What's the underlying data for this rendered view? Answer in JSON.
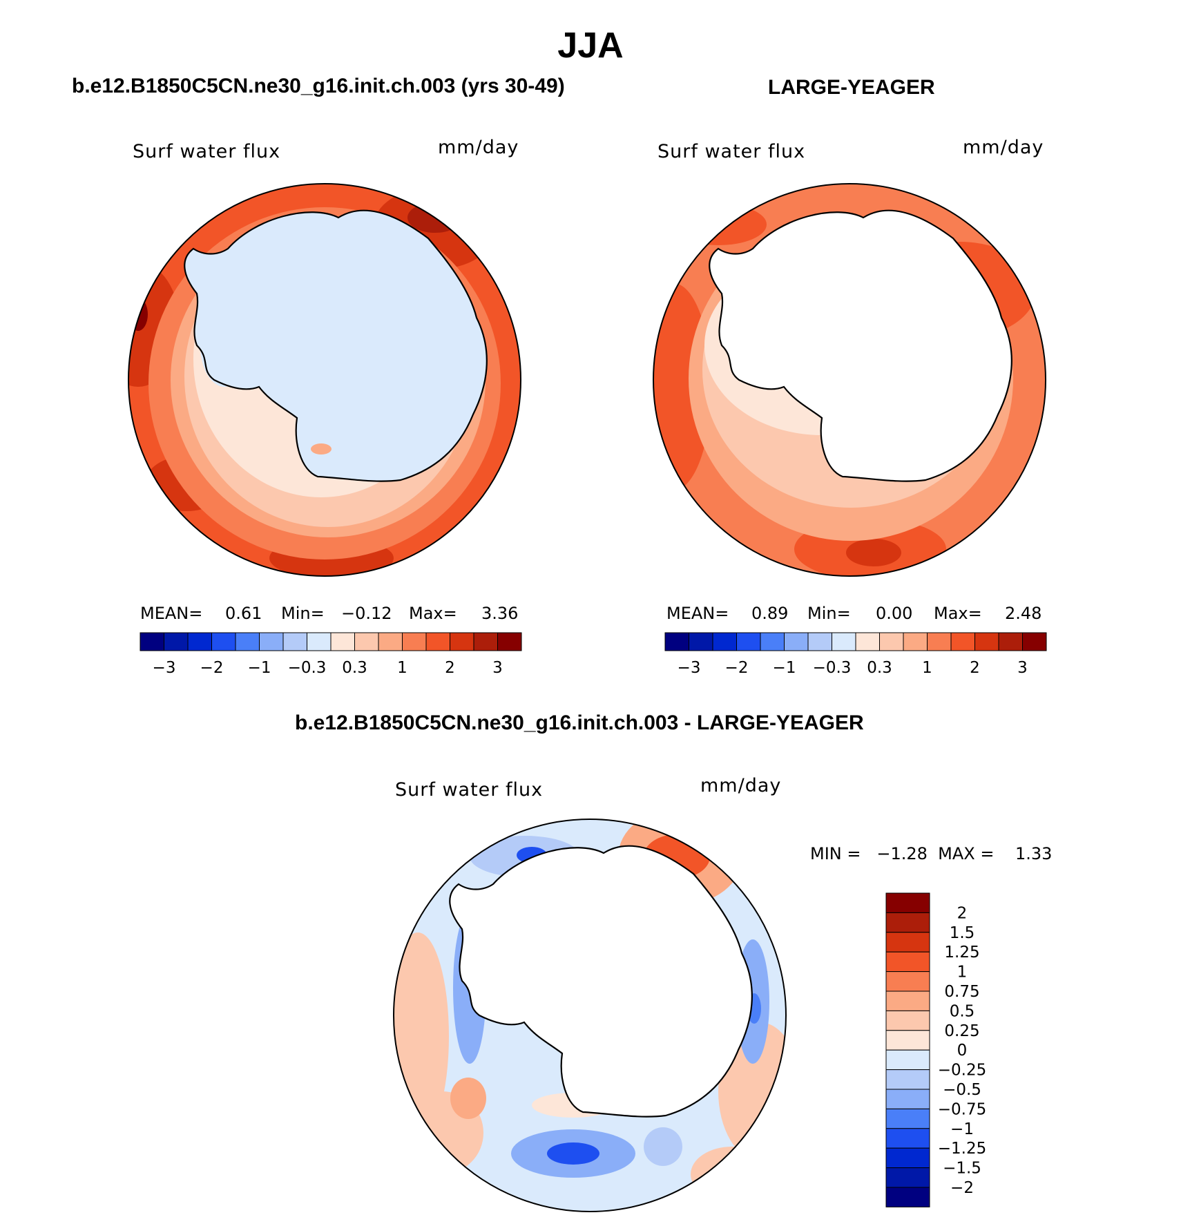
{
  "title": "JJA",
  "panels": [
    {
      "title": "b.e12.B1850C5CN.ne30_g16.init.ch.003 (yrs 30-49)",
      "variable": "Surf water flux",
      "units": "mm/day",
      "stats": {
        "mean_label": "MEAN=",
        "mean": "0.61",
        "min_label": "Min=",
        "min": "−0.12",
        "max_label": "Max=",
        "max": "3.36"
      }
    },
    {
      "title": "LARGE-YEAGER",
      "variable": "Surf water flux",
      "units": "mm/day",
      "stats": {
        "mean_label": "MEAN=",
        "mean": "0.89",
        "min_label": "Min=",
        "min": "0.00",
        "max_label": "Max=",
        "max": "2.48"
      }
    },
    {
      "title": "b.e12.B1850C5CN.ne30_g16.init.ch.003 - LARGE-YEAGER",
      "variable": "Surf water flux",
      "units": "mm/day",
      "minmax": "MIN =   −1.28  MAX =    1.33"
    }
  ],
  "colorbar_h": {
    "colors": [
      "#000080",
      "#0018a8",
      "#0028d0",
      "#1e4ff0",
      "#4a7ff8",
      "#8aaef8",
      "#b4cbf8",
      "#daeafc",
      "#fde6d8",
      "#fcc8ae",
      "#fbaa84",
      "#f87e52",
      "#f25528",
      "#d63510",
      "#ac1e0a",
      "#860000"
    ],
    "ticks": [
      "−3",
      "−2",
      "−1",
      "−0.3",
      "0.3",
      "1",
      "2",
      "3"
    ]
  },
  "colorbar_v": {
    "colors": [
      "#860000",
      "#ac1e0a",
      "#d63510",
      "#f25528",
      "#f87e52",
      "#fbaa84",
      "#fcc8ae",
      "#fde6d8",
      "#daeafc",
      "#b4cbf8",
      "#8aaef8",
      "#4a7ff8",
      "#1e4ff0",
      "#0028d0",
      "#0018a8",
      "#000080"
    ],
    "ticks": [
      "2",
      "1.5",
      "1.25",
      "1",
      "0.75",
      "0.5",
      "0.25",
      "0",
      "−0.25",
      "−0.5",
      "−0.75",
      "−1",
      "−1.25",
      "−1.5",
      "−2"
    ]
  }
}
